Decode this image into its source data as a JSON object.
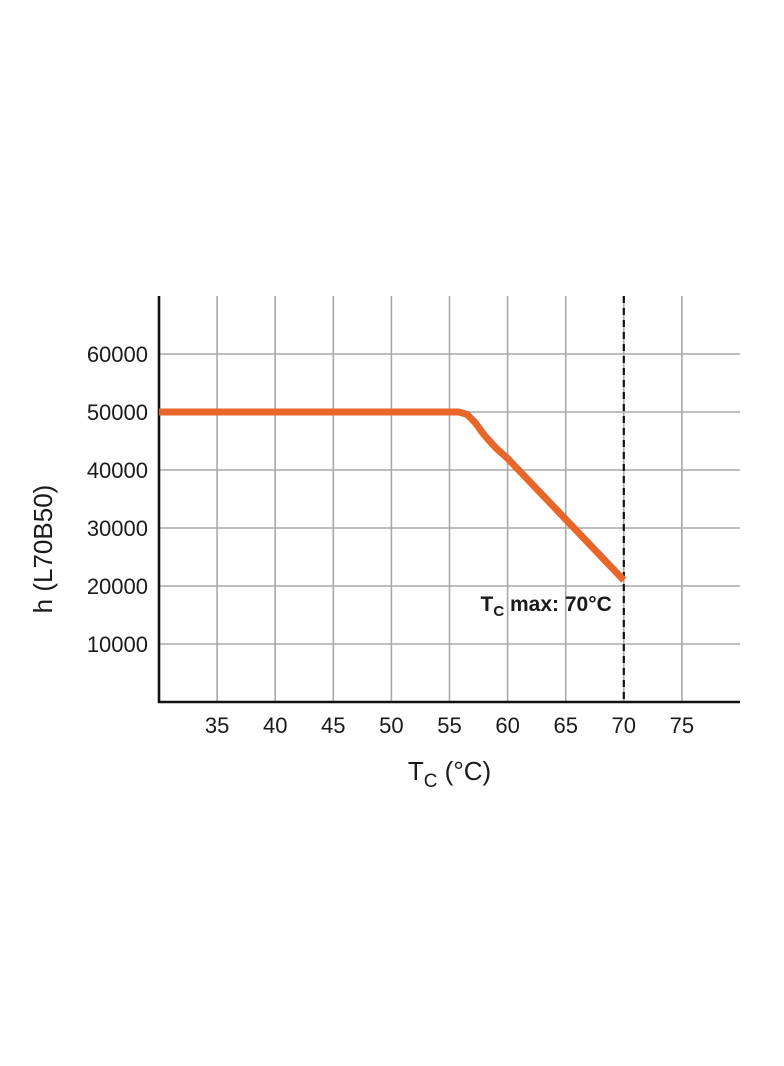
{
  "chart_data": {
    "type": "line",
    "ylabel": "h (L70B50)",
    "xlabel_main": "T",
    "xlabel_sub": "C",
    "xlabel_unit": " (°C)",
    "annotation_main": "T",
    "annotation_sub": "C",
    "annotation_text": " max: 70°C",
    "xlim": [
      30,
      80
    ],
    "ylim": [
      0,
      70000
    ],
    "x_ticks": [
      35,
      40,
      45,
      50,
      55,
      60,
      65,
      70,
      75
    ],
    "y_ticks": [
      10000,
      20000,
      30000,
      40000,
      50000,
      60000
    ],
    "y_tick_labels": [
      "10000",
      "20000",
      "30000",
      "40000",
      "50000",
      "60000"
    ],
    "grid": true,
    "reference_line": {
      "x": 70,
      "style": "dashed"
    },
    "series": [
      {
        "color": "#e8662a",
        "x": [
          30,
          55,
          55.8,
          56.5,
          57.2,
          58.0,
          59.0,
          60.0,
          65.0,
          70.0
        ],
        "y": [
          50000,
          50000,
          50000,
          49600,
          48200,
          46000,
          43800,
          42000,
          31500,
          21000
        ]
      }
    ]
  }
}
